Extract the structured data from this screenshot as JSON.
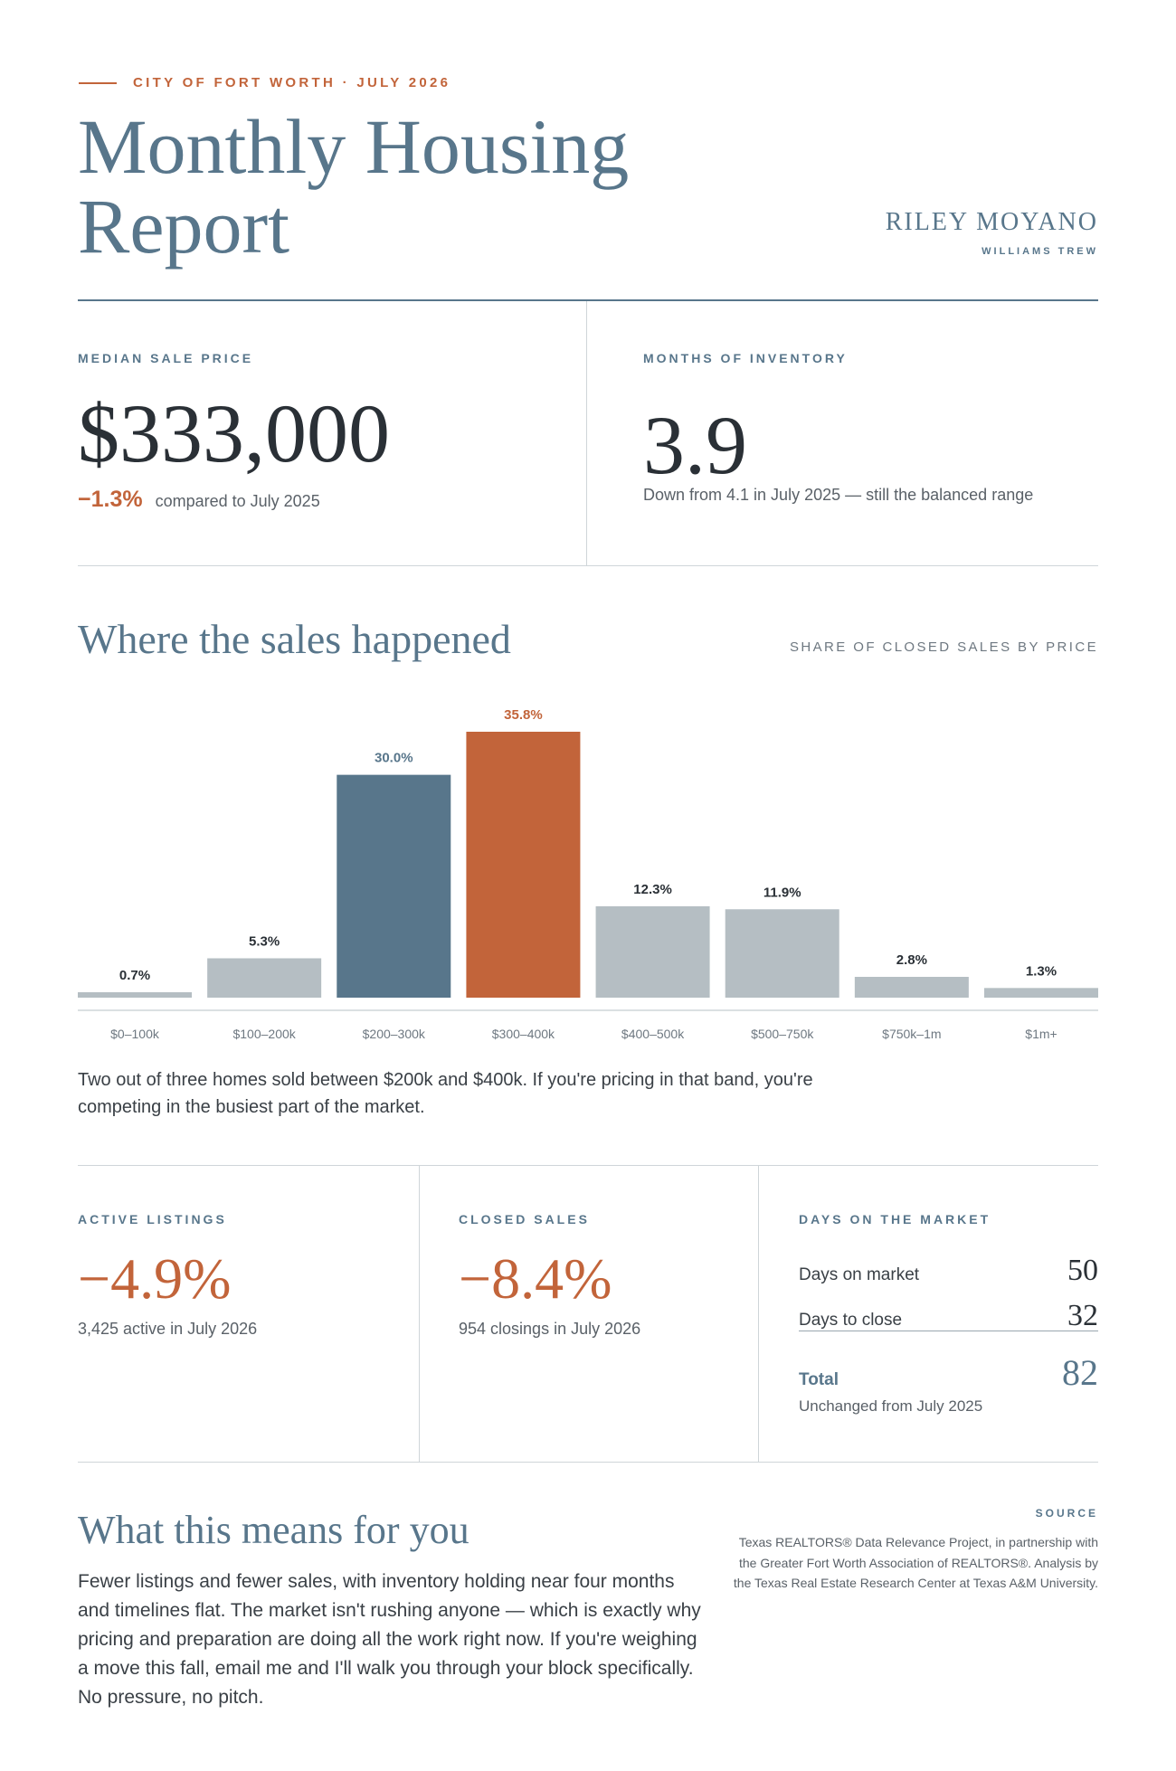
{
  "header": {
    "kicker": "CITY OF FORT WORTH · JULY 2026",
    "title": "Monthly Housing Report",
    "agent_name": "RILEY MOYANO",
    "agent_firm": "WILLIAMS TREW"
  },
  "median": {
    "label": "MEDIAN SALE PRICE",
    "value": "$333,000",
    "delta": "−1.3%",
    "delta_note": "compared to July 2025"
  },
  "inventory": {
    "label": "MONTHS OF INVENTORY",
    "value": "3.9",
    "note": "Down from 4.1 in July 2025 — still the balanced range"
  },
  "chart_section": {
    "title": "Where the sales happened",
    "subtitle": "SHARE OF CLOSED SALES BY PRICE",
    "caption": "Two out of three homes sold between $200k and $400k. If you're pricing in that band, you're competing in the busiest part of the market."
  },
  "chart_data": {
    "type": "bar",
    "categories": [
      "$0–100k",
      "$100–200k",
      "$200–300k",
      "$300–400k",
      "$400–500k",
      "$500–750k",
      "$750k–1m",
      "$1m+"
    ],
    "values": [
      0.7,
      5.3,
      30.0,
      35.8,
      12.3,
      11.9,
      2.8,
      1.3
    ],
    "value_labels": [
      "0.7%",
      "5.3%",
      "30.0%",
      "35.8%",
      "12.3%",
      "11.9%",
      "2.8%",
      "1.3%"
    ],
    "colors": [
      "#b5bec3",
      "#b5bec3",
      "#58768b",
      "#c2643a",
      "#b5bec3",
      "#b5bec3",
      "#b5bec3",
      "#b5bec3"
    ],
    "label_colors": [
      "#2a3036",
      "#2a3036",
      "#58768b",
      "#c2643a",
      "#2a3036",
      "#2a3036",
      "#2a3036",
      "#2a3036"
    ],
    "ylim": [
      0,
      35.8
    ],
    "grid": false
  },
  "active": {
    "label": "ACTIVE LISTINGS",
    "value": "−4.9%",
    "note": "3,425 active in July 2026"
  },
  "closed": {
    "label": "CLOSED SALES",
    "value": "−8.4%",
    "note": "954 closings in July 2026"
  },
  "dom": {
    "label": "DAYS ON THE MARKET",
    "rows": [
      {
        "k": "Days on market",
        "v": "50"
      },
      {
        "k": "Days to close",
        "v": "32"
      }
    ],
    "total_label": "Total",
    "total_value": "82",
    "note": "Unchanged from July 2025"
  },
  "means": {
    "title": "What this means for you",
    "body": "Fewer listings and fewer sales, with inventory holding near four months and timelines flat. The market isn't rushing anyone — which is exactly why pricing and preparation are doing all the work right now. If you're weighing a move this fall, email me and I'll walk you through your block specifically. No pressure, no pitch."
  },
  "source": {
    "label": "SOURCE",
    "text": "Texas REALTORS® Data Relevance Project, in partnership with the Greater Fort Worth Association of REALTORS®. Analysis by the Texas Real Estate Research Center at Texas A&M University."
  }
}
